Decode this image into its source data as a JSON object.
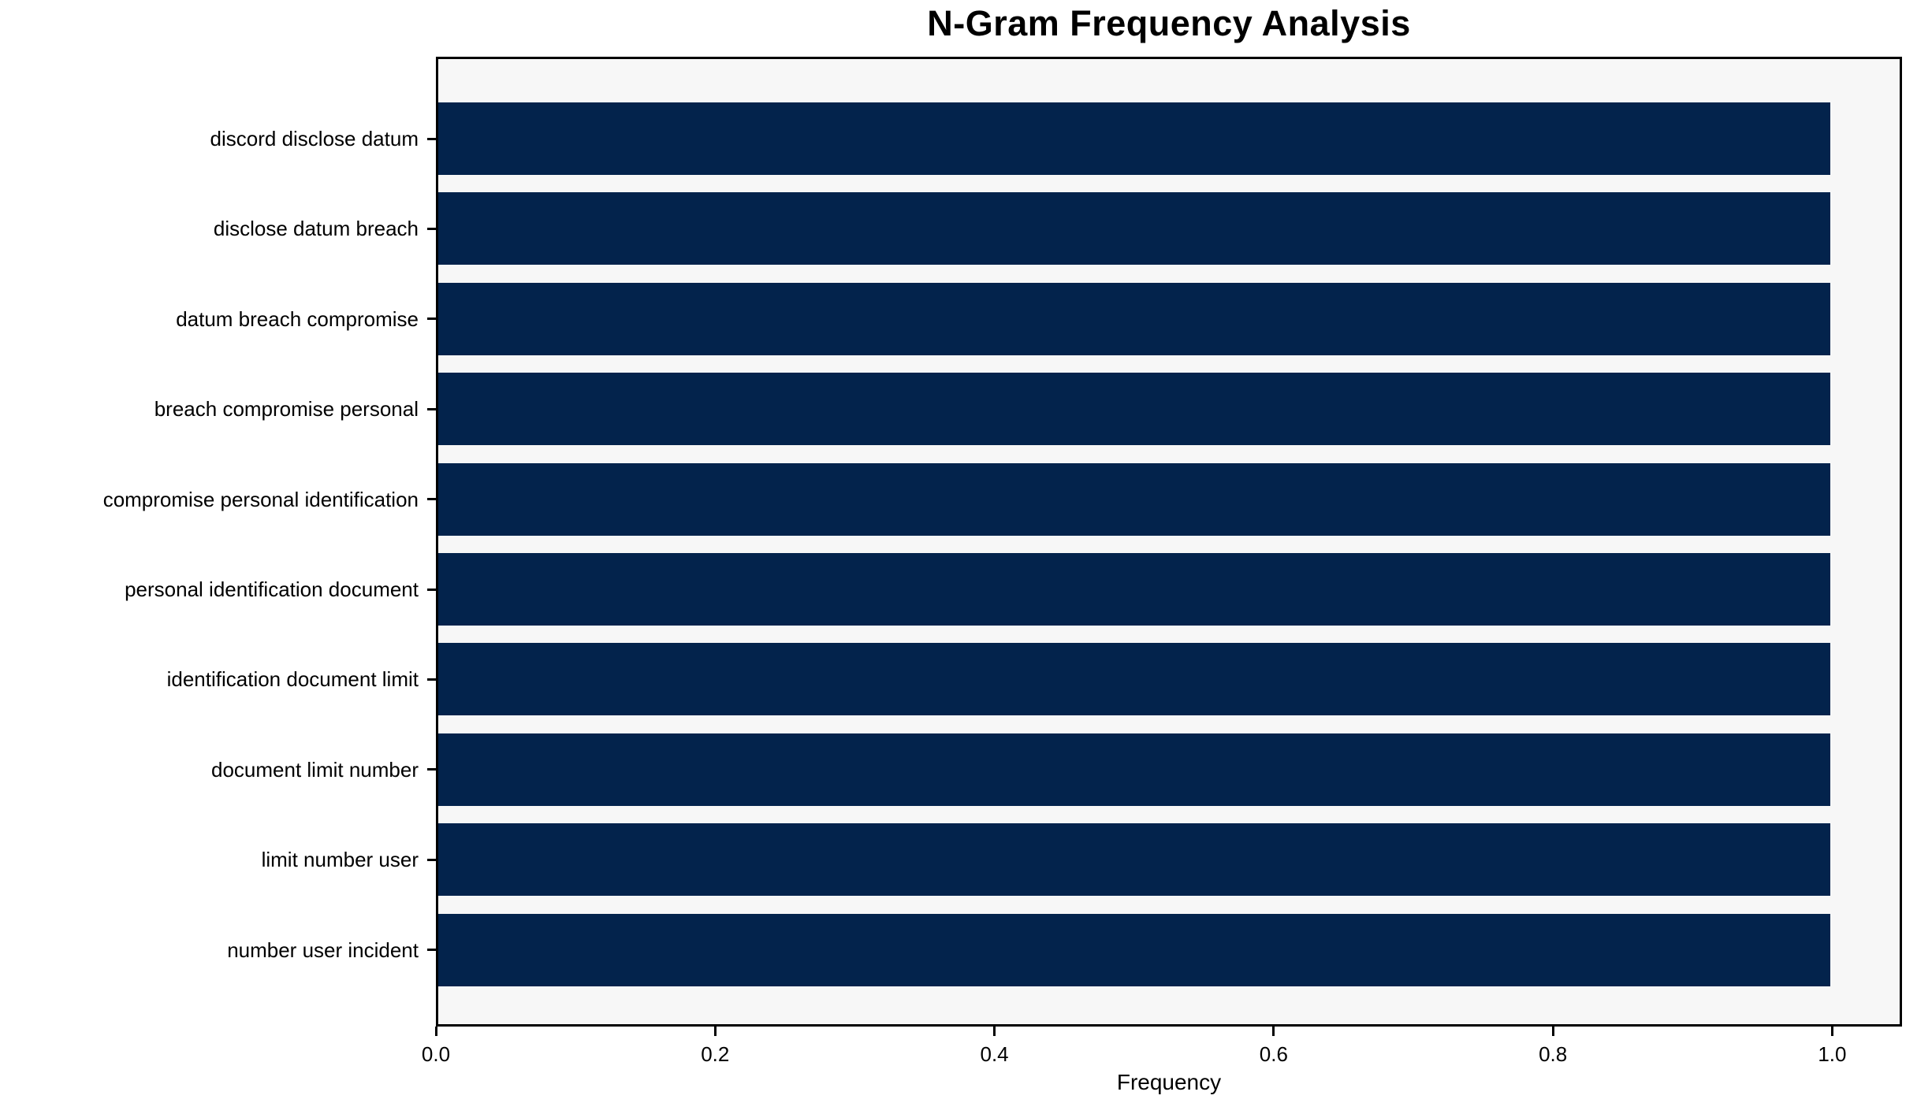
{
  "chart_data": {
    "type": "bar",
    "orientation": "horizontal",
    "title": "N-Gram Frequency Analysis",
    "xlabel": "Frequency",
    "ylabel": "",
    "categories": [
      "discord disclose datum",
      "disclose datum breach",
      "datum breach compromise",
      "breach compromise personal",
      "compromise personal identification",
      "personal identification document",
      "identification document limit",
      "document limit number",
      "limit number user",
      "number user incident"
    ],
    "values": [
      1.0,
      1.0,
      1.0,
      1.0,
      1.0,
      1.0,
      1.0,
      1.0,
      1.0,
      1.0
    ],
    "xlim": [
      0,
      1.05
    ],
    "xticks": [
      {
        "value": 0.0,
        "label": "0.0"
      },
      {
        "value": 0.2,
        "label": "0.2"
      },
      {
        "value": 0.4,
        "label": "0.4"
      },
      {
        "value": 0.6,
        "label": "0.6"
      },
      {
        "value": 0.8,
        "label": "0.8"
      },
      {
        "value": 1.0,
        "label": "1.0"
      }
    ],
    "grid": false,
    "legend": "none",
    "colors": {
      "bar": "#03234c",
      "plot_background": "#f7f7f7",
      "figure_background": "#ffffff",
      "axis": "#000000",
      "text": "#000000"
    }
  }
}
